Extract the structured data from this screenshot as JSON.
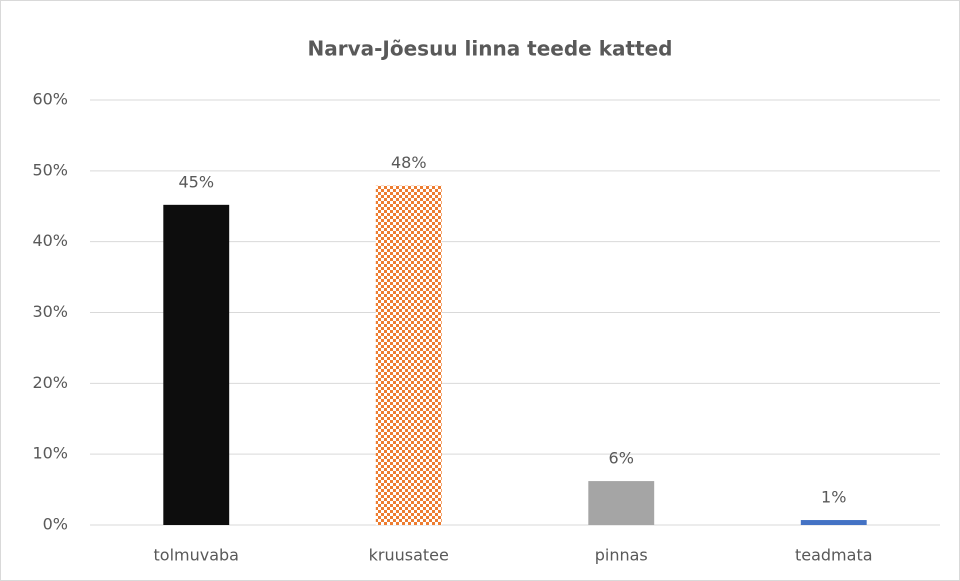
{
  "chart_data": {
    "type": "bar",
    "title": "Narva-Jõesuu linna teede katted",
    "categories": [
      "tolmuvaba",
      "kruusatee",
      "pinnas",
      "teadmata"
    ],
    "values": [
      45.2,
      47.9,
      6.2,
      0.7
    ],
    "value_labels": [
      "45%",
      "48%",
      "6%",
      "1%"
    ],
    "colors": [
      "#0d0d0d",
      "#ed7d31",
      "#a5a5a5",
      "#4472c4"
    ],
    "fills": [
      "solid",
      "dotted",
      "solid",
      "solid"
    ],
    "ylim": [
      0,
      60
    ],
    "yticks": [
      {
        "value": 0,
        "label": "0%"
      },
      {
        "value": 10,
        "label": "10%"
      },
      {
        "value": 20,
        "label": "20%"
      },
      {
        "value": 30,
        "label": "30%"
      },
      {
        "value": 40,
        "label": "40%"
      },
      {
        "value": 50,
        "label": "50%"
      },
      {
        "value": 60,
        "label": "60%"
      }
    ],
    "grid": true
  }
}
